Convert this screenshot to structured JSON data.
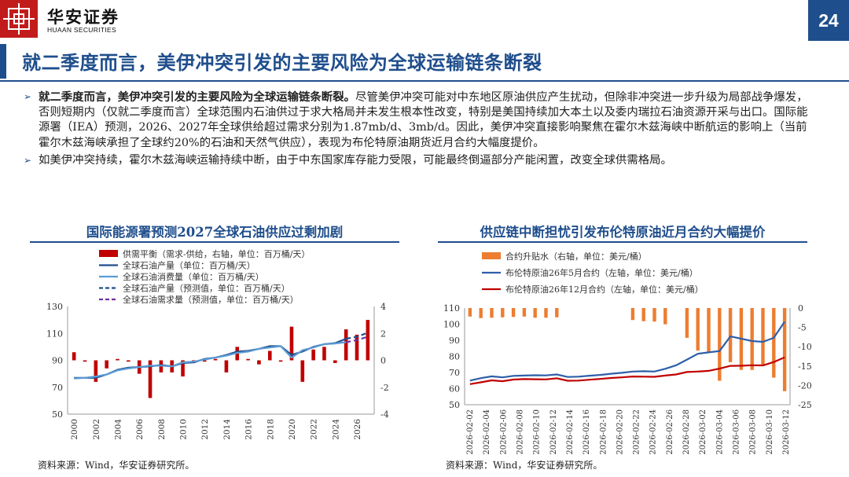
{
  "header": {
    "brand_cn": "华安证券",
    "brand_en": "HUAAN SECURITIES",
    "page_number": "24",
    "title": "就二季度而言，美伊冲突引发的主要风险为全球运输链条断裂"
  },
  "bullets": [
    {
      "bold": "就二季度而言，美伊冲突引发的主要风险为全球运输链条断裂。",
      "text": "尽管美伊冲突可能对中东地区原油供应产生扰动，但除非冲突进一步升级为局部战争爆发，否则短期内（仅就二季度而言）全球范围内石油供过于求大格局并未发生根本性改变，特别是美国持续加大本土以及委内瑞拉石油资源开采与出口。国际能源署（IEA）预测，2026、2027年全球供给超过需求分别为1.87mb/d、3mb/d。因此，美伊冲突直接影响聚焦在霍尔木兹海峡中断航运的影响上（当前霍尔木兹海峡承担了全球约20%的石油和天然气供应），表现为布伦特原油期货近月合约大幅度提价。"
    },
    {
      "bold": "",
      "text": "如美伊冲突持续，霍尔木兹海峡运输持续中断，由于中东国家库存能力受限，可能最终倒逼部分产能闲置，改变全球供需格局。"
    }
  ],
  "left_chart": {
    "panel_title": "国际能源署预测2027全球石油供应过剩加剧",
    "source": "资料来源：Wind，华安证券研究所。"
  },
  "right_chart": {
    "panel_title": "供应链中断担忧引发布伦特原油近月合约大幅提价",
    "source": "资料来源：Wind，华安证券研究所。"
  },
  "chart_data": [
    {
      "type": "bar",
      "title": "国际能源署预测2027全球石油供应过剩加剧",
      "x_ticks": [
        "2000",
        "2002",
        "2004",
        "2006",
        "2008",
        "2010",
        "2012",
        "2014",
        "2016",
        "2018",
        "2020",
        "2022",
        "2024",
        "2026"
      ],
      "x_range": [
        2000,
        2027
      ],
      "ylim_left": [
        50,
        130
      ],
      "yticks_left": [
        50,
        70,
        90,
        110,
        130
      ],
      "ylim_right": [
        -4,
        4
      ],
      "yticks_right": [
        -4,
        -2,
        0,
        2,
        4
      ],
      "grid": false,
      "legend_position": "top-left",
      "series": [
        {
          "name": "供需平衡（需求-供给，右轴，单位：百万桶/天）",
          "type": "bar",
          "axis": "right",
          "color": "#c00000",
          "x": [
            2000,
            2001,
            2002,
            2003,
            2004,
            2005,
            2006,
            2007,
            2008,
            2009,
            2010,
            2011,
            2012,
            2013,
            2014,
            2015,
            2016,
            2017,
            2018,
            2019,
            2020,
            2021,
            2022,
            2023,
            2024,
            2025,
            2026,
            2027
          ],
          "values": [
            0.6,
            -0.1,
            -1.6,
            -0.6,
            0.1,
            -0.1,
            -1.0,
            -2.8,
            -0.9,
            -0.9,
            -1.2,
            -0.2,
            -0.1,
            0.1,
            -0.9,
            1.0,
            0.1,
            -0.3,
            0.7,
            -0.1,
            2.5,
            -1.6,
            0.8,
            1.0,
            -0.2,
            2.3,
            1.9,
            3.0
          ]
        },
        {
          "name": "全球石油产量（单位：百万桶/天）",
          "type": "line",
          "axis": "left",
          "color": "#1f4e8c",
          "x": [
            2000,
            2001,
            2002,
            2003,
            2004,
            2005,
            2006,
            2007,
            2008,
            2009,
            2010,
            2011,
            2012,
            2013,
            2014,
            2015,
            2016,
            2017,
            2018,
            2019,
            2020,
            2021,
            2022,
            2023,
            2024,
            2025
          ],
          "values": [
            77.0,
            77.0,
            77.0,
            79.5,
            83.0,
            84.5,
            85.0,
            85.5,
            86.5,
            85.5,
            88.0,
            88.5,
            91.0,
            92.0,
            94.0,
            96.5,
            97.0,
            98.5,
            100.5,
            100.5,
            94.0,
            96.5,
            100.0,
            102.0,
            102.8,
            106.0
          ]
        },
        {
          "name": "全球石油消费量（单位：百万桶/天）",
          "type": "line",
          "axis": "left",
          "color": "#5b9bd5",
          "x": [
            2000,
            2001,
            2002,
            2003,
            2004,
            2005,
            2006,
            2007,
            2008,
            2009,
            2010,
            2011,
            2012,
            2013,
            2014,
            2015,
            2016,
            2017,
            2018,
            2019,
            2020,
            2021,
            2022,
            2023,
            2024,
            2025
          ],
          "values": [
            76.5,
            77.0,
            78.0,
            79.5,
            82.5,
            84.0,
            85.0,
            86.0,
            86.0,
            85.5,
            88.5,
            89.0,
            90.5,
            92.0,
            93.5,
            95.5,
            96.5,
            98.5,
            99.5,
            100.5,
            92.0,
            97.5,
            99.5,
            102.0,
            102.5,
            103.5
          ]
        },
        {
          "name": "全球石油产量（预测值，单位：百万桶/天）",
          "type": "line-dashed",
          "axis": "left",
          "color": "#1f4e8c",
          "x": [
            2025,
            2026,
            2027
          ],
          "values": [
            106.0,
            107.5,
            110.5
          ]
        },
        {
          "name": "全球石油需求量（预测值，单位：百万桶/天）",
          "type": "line-dashed",
          "axis": "left",
          "color": "#7030a0",
          "x": [
            2025,
            2026,
            2027
          ],
          "values": [
            103.5,
            105.0,
            107.5
          ]
        }
      ]
    },
    {
      "type": "bar",
      "title": "供应链中断担忧引发布伦特原油近月合约大幅提价",
      "categories": [
        "2026-02-02",
        "2026-02-03",
        "2026-02-04",
        "2026-02-05",
        "2026-02-06",
        "2026-02-09",
        "2026-02-10",
        "2026-02-11",
        "2026-02-12",
        "2026-02-13",
        "2026-02-16",
        "2026-02-17",
        "2026-02-18",
        "2026-02-19",
        "2026-02-20",
        "2026-02-23",
        "2026-02-24",
        "2026-02-25",
        "2026-02-26",
        "2026-02-27",
        "2026-03-02",
        "2026-03-03",
        "2026-03-04",
        "2026-03-05",
        "2026-03-06",
        "2026-03-09",
        "2026-03-10",
        "2026-03-11",
        "2026-03-12",
        "2026-03-13"
      ],
      "x_tick_labels": [
        "2026-02-02",
        "2026-02-04",
        "2026-02-06",
        "2026-02-08",
        "2026-02-10",
        "2026-02-12",
        "2026-02-14",
        "2026-02-16",
        "2026-02-18",
        "2026-02-20",
        "2026-02-22",
        "2026-02-24",
        "2026-02-26",
        "2026-02-28",
        "2026-03-02",
        "2026-03-04",
        "2026-03-06",
        "2026-03-08",
        "2026-03-10",
        "2026-03-12"
      ],
      "ylim_left": [
        50,
        110
      ],
      "yticks_left": [
        50,
        60,
        70,
        80,
        90,
        100,
        110
      ],
      "ylim_right": [
        -25,
        0
      ],
      "yticks_right": [
        0,
        -5,
        -10,
        -15,
        -20,
        -25
      ],
      "grid": false,
      "legend_position": "top-left",
      "series": [
        {
          "name": "合约升贴水（右轴，单位：美元/桶）",
          "type": "bar",
          "axis": "right",
          "color": "#ed7d31",
          "values": [
            -2.2,
            -2.6,
            -2.5,
            -2.4,
            -2.3,
            -2.2,
            -2.5,
            -2.5,
            -2.4,
            null,
            null,
            null,
            null,
            null,
            null,
            -3.1,
            -3.4,
            -3.5,
            -4.2,
            null,
            -7.7,
            -11.0,
            -11.5,
            -18.8,
            -14.0,
            -16.0,
            -16.0,
            -14.8,
            -18.0,
            -21.5
          ]
        },
        {
          "name": "布伦特原油26年5月合约（左轴，单位：美元/桶）",
          "type": "line",
          "axis": "left",
          "color": "#2e5fa8",
          "values": [
            65.0,
            66.5,
            67.6,
            67.0,
            67.9,
            68.1,
            68.3,
            68.2,
            68.8,
            67.2,
            67.4,
            68.0,
            68.5,
            69.2,
            69.8,
            70.6,
            70.8,
            70.6,
            72.3,
            74.5,
            78.0,
            81.6,
            82.5,
            83.3,
            92.4,
            91.0,
            89.5,
            89.0,
            91.5,
            101.5
          ]
        },
        {
          "name": "布伦特原油26年12月合约（左轴，单位：美元/桶）",
          "type": "line",
          "axis": "left",
          "color": "#c00000",
          "values": [
            62.8,
            63.9,
            65.1,
            64.6,
            65.6,
            65.9,
            65.8,
            65.7,
            66.4,
            64.9,
            65.0,
            65.5,
            66.0,
            66.6,
            67.0,
            67.5,
            67.4,
            67.3,
            68.1,
            68.8,
            70.3,
            70.6,
            71.0,
            72.4,
            74.1,
            74.2,
            74.5,
            74.4,
            76.5,
            79.4
          ]
        }
      ]
    }
  ]
}
